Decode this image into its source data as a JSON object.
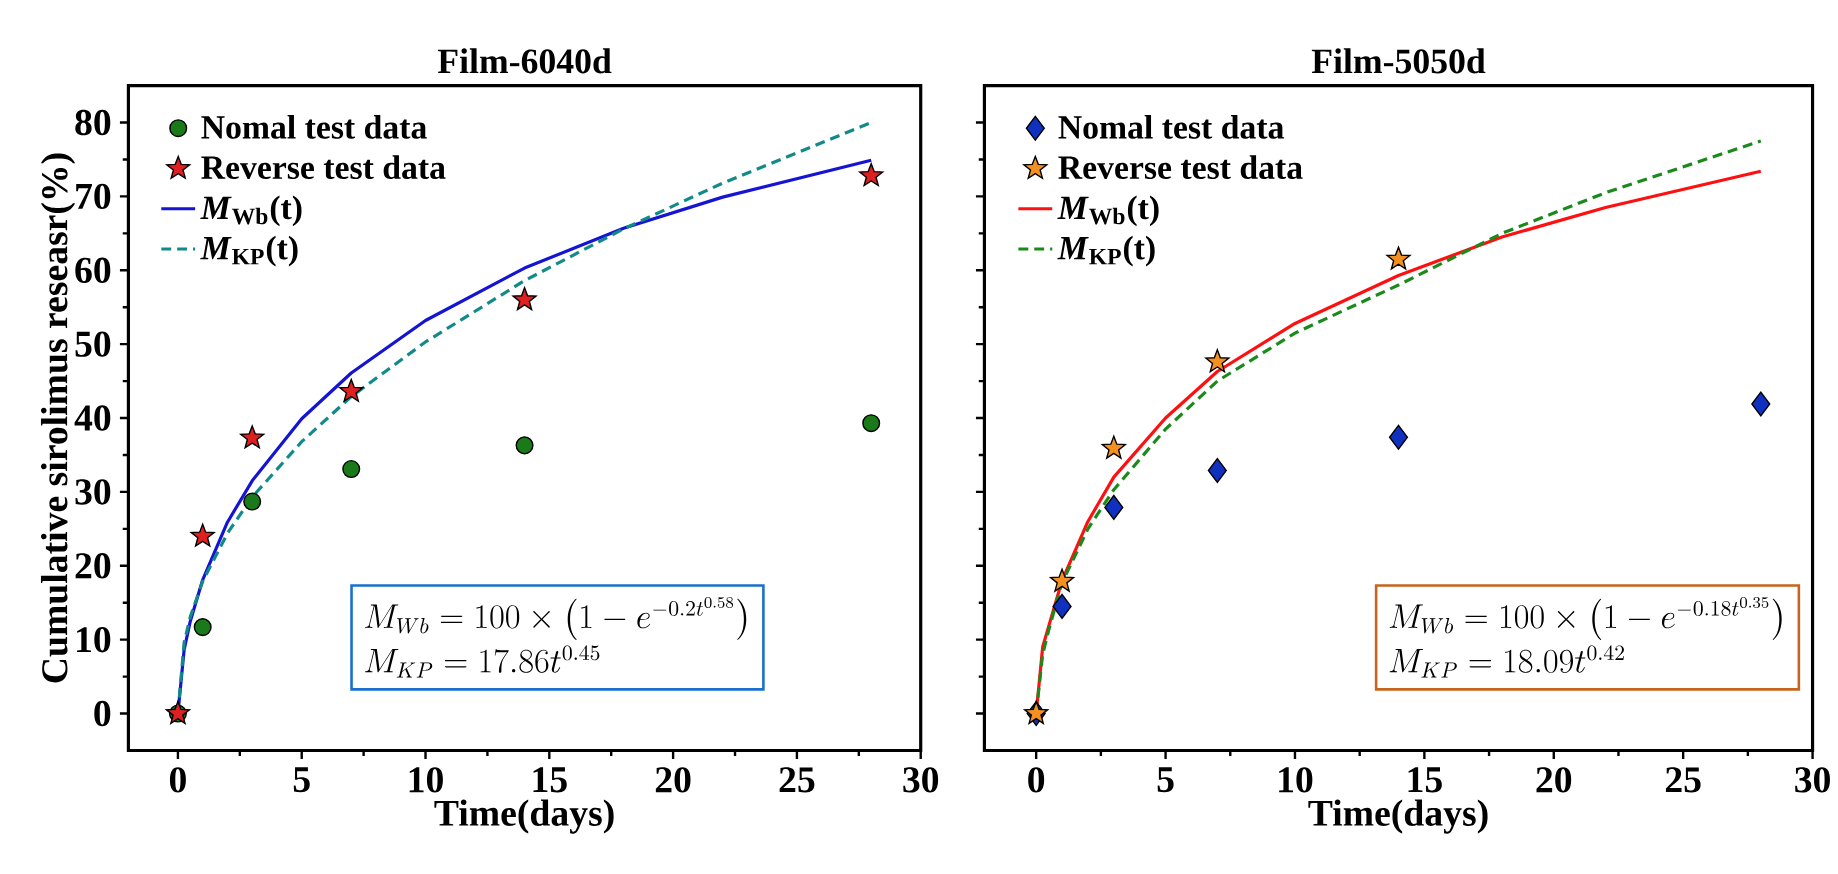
{
  "chart_data": [
    {
      "type": "scatter",
      "title": "Film-6040d",
      "xlabel": "Time(days)",
      "ylabel": "Cumulative sirolimus reseasr(%)",
      "xlim": [
        -2,
        30
      ],
      "xticks": [
        0,
        5,
        10,
        15,
        20,
        25,
        30
      ],
      "ylim": [
        -5,
        85
      ],
      "yticks": [
        0,
        10,
        20,
        30,
        40,
        50,
        60,
        70,
        80
      ],
      "legend": "top left",
      "annotations": [
        "M_{Wb} = 100\\times\\left(1-e^{-0.2t^{0.58}}\\right)",
        "M_{KP} = 17.86t^{0.45}"
      ],
      "series": [
        {
          "name": "Nomal test data",
          "marker": "circle",
          "color": "#1a7a1a",
          "x": [
            0,
            1,
            3,
            7,
            14,
            28
          ],
          "values": [
            0,
            11.7,
            28.7,
            33.1,
            36.3,
            39.3
          ]
        },
        {
          "name": "Reverse test data",
          "marker": "star",
          "color": "#e02020",
          "x": [
            0,
            1,
            3,
            7,
            14,
            28
          ],
          "values": [
            0,
            24,
            37.3,
            43.6,
            56,
            72.8
          ]
        },
        {
          "name": "*M*$_{Wb}$(t)",
          "type": "line",
          "line_style": "solid",
          "color": "#1414d2",
          "x": [
            0,
            0.25,
            0.5,
            1,
            2,
            3,
            5,
            7,
            10,
            14,
            18,
            22,
            28
          ],
          "values": [
            0,
            8.6,
            12.5,
            18.1,
            25.9,
            31.5,
            39.9,
            46.1,
            53.2,
            60.3,
            65.7,
            69.9,
            74.9
          ]
        },
        {
          "name": "*M*$_{KP}$(t)",
          "type": "line",
          "line_style": "dashed",
          "color": "#138a8a",
          "x": [
            0,
            0.25,
            0.5,
            1,
            2,
            3,
            5,
            7,
            10,
            14,
            18,
            22,
            28
          ],
          "values": [
            0,
            9.6,
            13.1,
            17.9,
            24.4,
            29.3,
            36.8,
            42.9,
            50.3,
            58.6,
            65.6,
            71.8,
            80.0
          ]
        }
      ]
    },
    {
      "type": "scatter",
      "title": "Film-5050d",
      "xlabel": "Time(days)",
      "xlim": [
        -2,
        30
      ],
      "xticks": [
        0,
        5,
        10,
        15,
        20,
        25,
        30
      ],
      "ylim": [
        -5,
        85
      ],
      "yticks": [
        0,
        10,
        20,
        30,
        40,
        50,
        60,
        70,
        80
      ],
      "legend": "top left",
      "tick_labels": "x",
      "annotations": [
        "M_{Wb} = 100\\times\\left(1-e^{-0.18t^{0.35}}\\right)",
        "M_{KP} = 18.09t^{0.42}"
      ],
      "series": [
        {
          "name": "Nomal test data",
          "marker": "diamond",
          "color": "#1030c0",
          "x": [
            0,
            1,
            3,
            7,
            14,
            28
          ],
          "values": [
            0,
            14.5,
            27.9,
            32.9,
            37.4,
            41.9
          ]
        },
        {
          "name": "Reverse test data",
          "marker": "star",
          "color": "#f39020",
          "x": [
            0,
            1,
            3,
            7,
            14
          ],
          "values": [
            0,
            17.9,
            35.9,
            47.6,
            61.5
          ]
        },
        {
          "name": "*M*$_{Wb}$(t)",
          "type": "line",
          "line_style": "solid",
          "color": "#ff1010",
          "x": [
            0,
            0.25,
            0.5,
            1,
            2,
            3,
            5,
            7,
            10,
            14,
            18,
            22,
            28
          ],
          "values": [
            0,
            9,
            12,
            18,
            26,
            32,
            40,
            46.3,
            52.8,
            59.3,
            64.5,
            68.5,
            73.4
          ]
        },
        {
          "name": "*M*$_{KP}$(t)",
          "type": "line",
          "line_style": "dashed",
          "color": "#1a8a1a",
          "x": [
            0,
            0.25,
            0.5,
            1,
            2,
            3,
            5,
            7,
            10,
            14,
            18,
            22,
            28
          ],
          "values": [
            0,
            8,
            11.5,
            17.7,
            25,
            30.3,
            38.5,
            45,
            51.5,
            58,
            65,
            70.5,
            77.5
          ]
        }
      ]
    }
  ]
}
